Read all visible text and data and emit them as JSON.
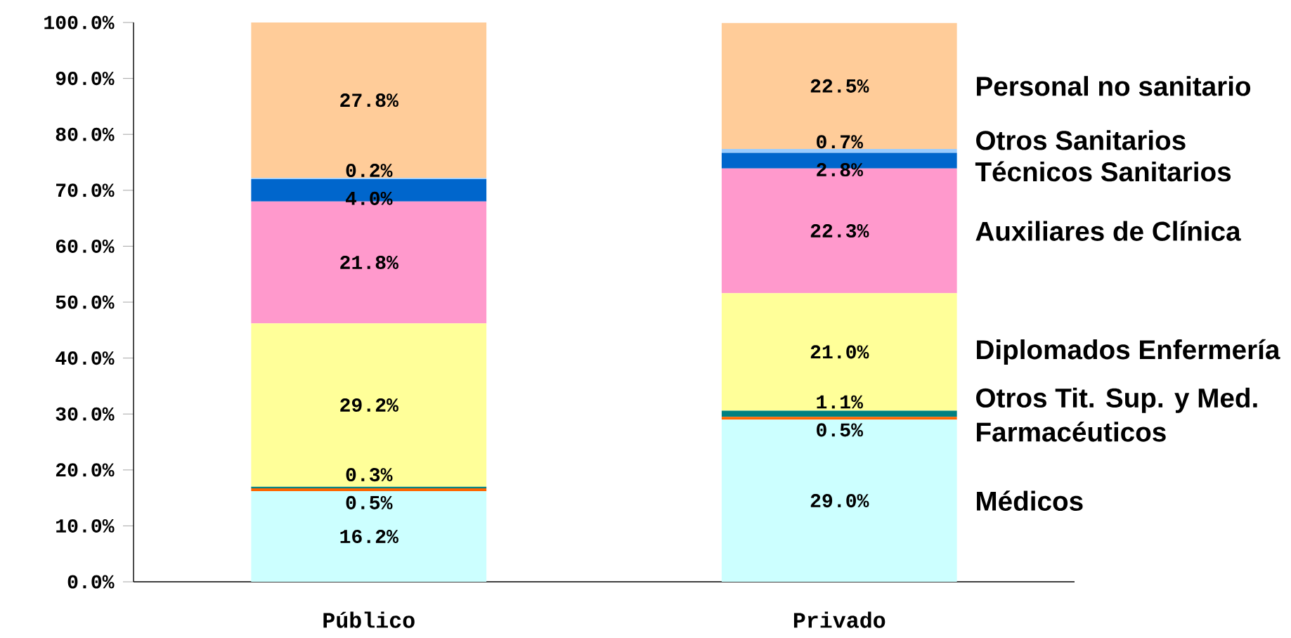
{
  "chart_data": {
    "type": "bar",
    "stacked": true,
    "categories": [
      "Público",
      "Privado"
    ],
    "ylim": [
      0,
      100
    ],
    "yticks": [
      {
        "value": 0,
        "label": "0.0%"
      },
      {
        "value": 10,
        "label": "10.0%"
      },
      {
        "value": 20,
        "label": "20.0%"
      },
      {
        "value": 30,
        "label": "30.0%"
      },
      {
        "value": 40,
        "label": "40.0%"
      },
      {
        "value": 50,
        "label": "50.0%"
      },
      {
        "value": 60,
        "label": "60.0%"
      },
      {
        "value": 70,
        "label": "70.0%"
      },
      {
        "value": 80,
        "label": "80.0%"
      },
      {
        "value": 90,
        "label": "90.0%"
      },
      {
        "value": 100,
        "label": "100.0%"
      }
    ],
    "grid": false,
    "series": [
      {
        "name": "Médicos",
        "color": "#ccffff",
        "values": [
          16.2,
          29.0
        ],
        "value_labels": [
          "16.2%",
          "29.0%"
        ]
      },
      {
        "name": "Farmacéuticos",
        "color": "#ff6600",
        "values": [
          0.5,
          0.5
        ],
        "value_labels": [
          "0.5%",
          "0.5%"
        ]
      },
      {
        "name": "Otros Tit. Sup. y Med.",
        "color": "#008080",
        "values": [
          0.3,
          1.1
        ],
        "value_labels": [
          "0.3%",
          "1.1%"
        ]
      },
      {
        "name": "Diplomados Enfermería",
        "color": "#ffff99",
        "values": [
          29.2,
          21.0
        ],
        "value_labels": [
          "29.2%",
          "21.0%"
        ]
      },
      {
        "name": "Auxiliares de Clínica",
        "color": "#ff99cc",
        "values": [
          21.8,
          22.3
        ],
        "value_labels": [
          "21.8%",
          "22.3%"
        ]
      },
      {
        "name": "Técnicos Sanitarios",
        "color": "#0066cc",
        "values": [
          4.0,
          2.8
        ],
        "value_labels": [
          "4.0%",
          "2.8%"
        ]
      },
      {
        "name": "Otros Sanitarios",
        "color": "#99ccff",
        "values": [
          0.2,
          0.7
        ],
        "value_labels": [
          "0.2%",
          "0.7%"
        ]
      },
      {
        "name": "Personal no sanitario",
        "color": "#ffcc99",
        "values": [
          27.8,
          22.5
        ],
        "value_labels": [
          "27.8%",
          "22.5%"
        ]
      }
    ]
  }
}
